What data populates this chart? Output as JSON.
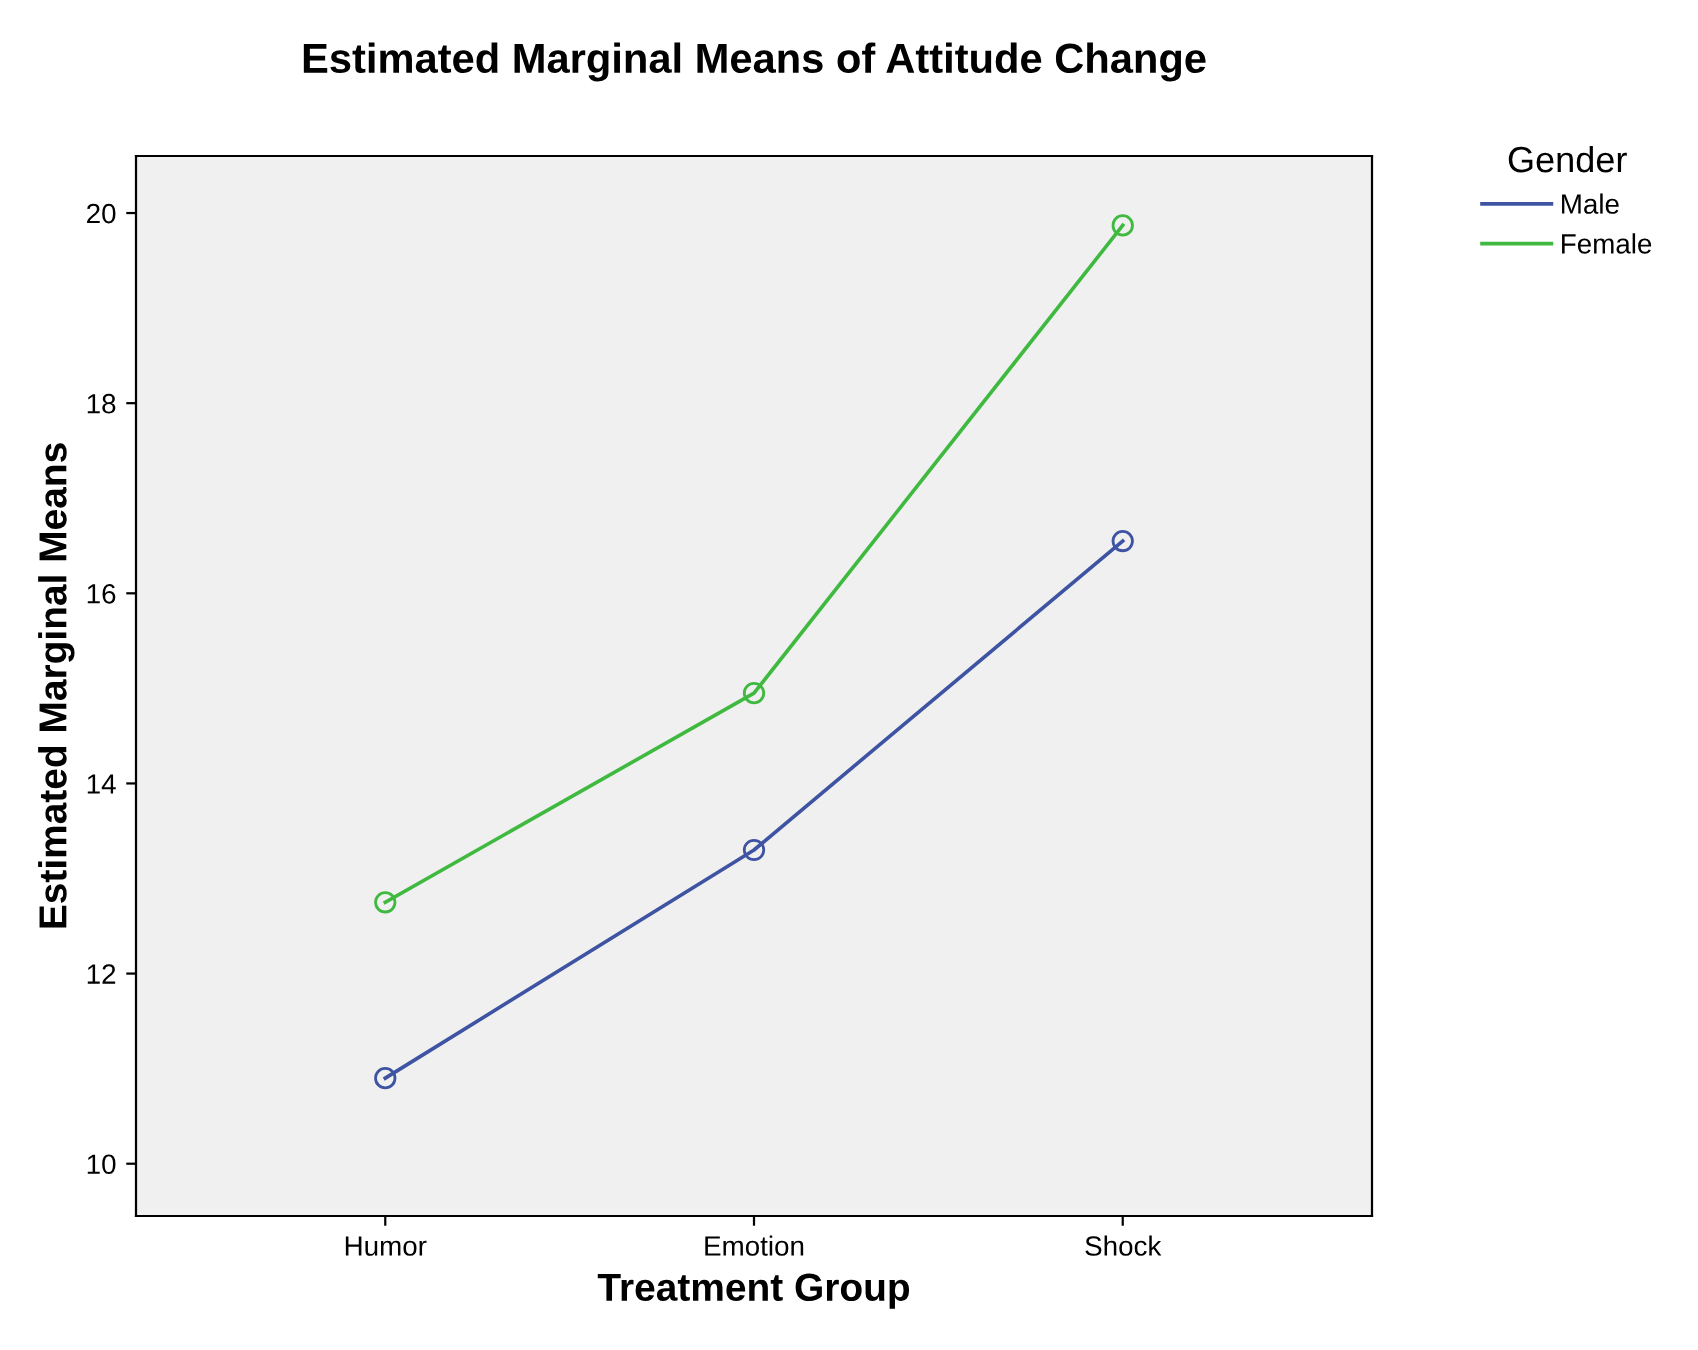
{
  "chart_data": {
    "type": "line",
    "title": "Estimated Marginal Means of Attitude Change",
    "xlabel": "Treatment Group",
    "ylabel": "Estimated Marginal Means",
    "legend_title": "Gender",
    "categories": [
      "Humor",
      "Emotion",
      "Shock"
    ],
    "series": [
      {
        "name": "Male",
        "color": "#3e54a3",
        "values": [
          10.9,
          13.3,
          16.55
        ]
      },
      {
        "name": "Female",
        "color": "#3fb93f",
        "values": [
          12.75,
          14.95,
          19.87
        ]
      }
    ],
    "ylim": [
      9.45,
      20.6
    ],
    "yticks": [
      10,
      12,
      14,
      16,
      18,
      20
    ],
    "grid": false,
    "legend": "top right",
    "marker": "circle",
    "line_style": "solid"
  }
}
